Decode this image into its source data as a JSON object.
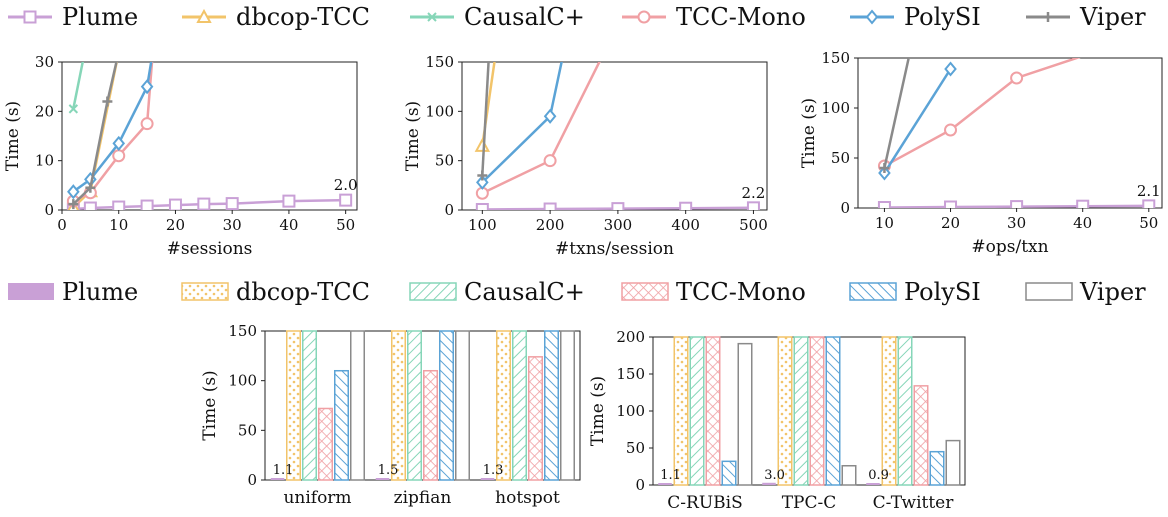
{
  "colors": {
    "Plume": "#c9a0d6",
    "dbcop-TCC": "#f2c46a",
    "CausalC+": "#86d6b8",
    "TCC-Mono": "#f0a0a4",
    "PolySI": "#5ba3d6",
    "Viper": "#8a8a8a"
  },
  "legend_top": [
    "Plume",
    "dbcop-TCC",
    "CausalC+",
    "TCC-Mono",
    "PolySI",
    "Viper"
  ],
  "legend_bottom": [
    "Plume",
    "dbcop-TCC",
    "CausalC+",
    "TCC-Mono",
    "PolySI",
    "Viper"
  ],
  "chart_data": [
    {
      "type": "line",
      "xlabel": "#sessions",
      "ylabel": "Time (s)",
      "xlim": [
        0,
        52
      ],
      "ylim": [
        0,
        30
      ],
      "xticks": [
        0,
        10,
        20,
        30,
        40,
        50
      ],
      "yticks": [
        0,
        10,
        20,
        30
      ],
      "annotation": {
        "text": "2.0",
        "x": 50,
        "y": 2.0
      },
      "series": [
        {
          "name": "Plume",
          "x": [
            2,
            5,
            10,
            15,
            20,
            25,
            30,
            40,
            50
          ],
          "y": [
            0.2,
            0.4,
            0.6,
            0.8,
            1.0,
            1.2,
            1.3,
            1.8,
            2.0
          ]
        },
        {
          "name": "dbcop-TCC",
          "x": [
            2,
            5,
            10
          ],
          "y": [
            0.5,
            3.8,
            32
          ]
        },
        {
          "name": "CausalC+",
          "x": [
            2,
            4
          ],
          "y": [
            20.5,
            32
          ]
        },
        {
          "name": "TCC-Mono",
          "x": [
            2,
            5,
            10,
            15,
            16
          ],
          "y": [
            1.8,
            3.5,
            11,
            17.5,
            32
          ]
        },
        {
          "name": "PolySI",
          "x": [
            2,
            5,
            10,
            15,
            16
          ],
          "y": [
            3.7,
            6.2,
            13.5,
            25,
            32
          ]
        },
        {
          "name": "Viper",
          "x": [
            2,
            5,
            8,
            10
          ],
          "y": [
            1.2,
            4.5,
            22,
            32
          ]
        }
      ]
    },
    {
      "type": "line",
      "xlabel": "#txns/session",
      "ylabel": "Time (s)",
      "xlim": [
        70,
        520
      ],
      "ylim": [
        0,
        150
      ],
      "xticks": [
        100,
        200,
        300,
        400,
        500
      ],
      "yticks": [
        0,
        50,
        100,
        150
      ],
      "annotation": {
        "text": "2.2",
        "x": 500,
        "y": 2.2
      },
      "series": [
        {
          "name": "Plume",
          "x": [
            100,
            200,
            300,
            400,
            500
          ],
          "y": [
            0.5,
            1.0,
            1.4,
            1.8,
            2.2
          ]
        },
        {
          "name": "dbcop-TCC",
          "x": [
            100,
            120
          ],
          "y": [
            65,
            160
          ]
        },
        {
          "name": "TCC-Mono",
          "x": [
            100,
            200,
            280
          ],
          "y": [
            17,
            50,
            160
          ]
        },
        {
          "name": "PolySI",
          "x": [
            100,
            200,
            220
          ],
          "y": [
            28,
            95,
            160
          ]
        },
        {
          "name": "Viper",
          "x": [
            100,
            110
          ],
          "y": [
            35,
            160
          ]
        }
      ]
    },
    {
      "type": "line",
      "xlabel": "#ops/txn",
      "ylabel": "Time (s)",
      "xlim": [
        6,
        52
      ],
      "ylim": [
        0,
        150
      ],
      "xticks": [
        10,
        20,
        30,
        40,
        50
      ],
      "yticks": [
        0,
        50,
        100,
        150
      ],
      "annotation": {
        "text": "2.1",
        "x": 50,
        "y": 2.1
      },
      "series": [
        {
          "name": "Plume",
          "x": [
            10,
            20,
            30,
            40,
            50
          ],
          "y": [
            0.5,
            1.0,
            1.4,
            1.8,
            2.1
          ]
        },
        {
          "name": "TCC-Mono",
          "x": [
            10,
            20,
            30,
            40
          ],
          "y": [
            42,
            78,
            130,
            152
          ]
        },
        {
          "name": "PolySI",
          "x": [
            10,
            20
          ],
          "y": [
            35,
            139
          ]
        },
        {
          "name": "Viper",
          "x": [
            10,
            14
          ],
          "y": [
            40,
            160
          ]
        }
      ]
    },
    {
      "type": "bar",
      "xlabel": "",
      "ylabel": "Time (s)",
      "ylim": [
        0,
        150
      ],
      "yticks": [
        0,
        50,
        100,
        150
      ],
      "categories": [
        "uniform",
        "zipfian",
        "hotspot"
      ],
      "series": [
        {
          "name": "Plume",
          "values": [
            1.1,
            1.5,
            1.3
          ]
        },
        {
          "name": "dbcop-TCC",
          "values": [
            150,
            150,
            150
          ]
        },
        {
          "name": "CausalC+",
          "values": [
            150,
            150,
            150
          ]
        },
        {
          "name": "TCC-Mono",
          "values": [
            72,
            110,
            124
          ]
        },
        {
          "name": "PolySI",
          "values": [
            110,
            150,
            150
          ]
        },
        {
          "name": "Viper",
          "values": [
            150,
            150,
            150
          ]
        }
      ],
      "labels": [
        "1.1",
        "1.5",
        "1.3"
      ]
    },
    {
      "type": "bar",
      "xlabel": "",
      "ylabel": "Time (s)",
      "ylim": [
        0,
        200
      ],
      "yticks": [
        0,
        50,
        100,
        150,
        200
      ],
      "categories": [
        "C-RUBiS",
        "TPC-C",
        "C-Twitter"
      ],
      "series": [
        {
          "name": "Plume",
          "values": [
            1.1,
            3.0,
            0.9
          ]
        },
        {
          "name": "dbcop-TCC",
          "values": [
            200,
            200,
            200
          ]
        },
        {
          "name": "CausalC+",
          "values": [
            200,
            200,
            200
          ]
        },
        {
          "name": "TCC-Mono",
          "values": [
            200,
            200,
            134
          ]
        },
        {
          "name": "PolySI",
          "values": [
            32,
            200,
            45
          ]
        },
        {
          "name": "Viper",
          "values": [
            191,
            26,
            60
          ]
        }
      ],
      "labels": [
        "1.1",
        "3.0",
        "0.9"
      ]
    }
  ]
}
